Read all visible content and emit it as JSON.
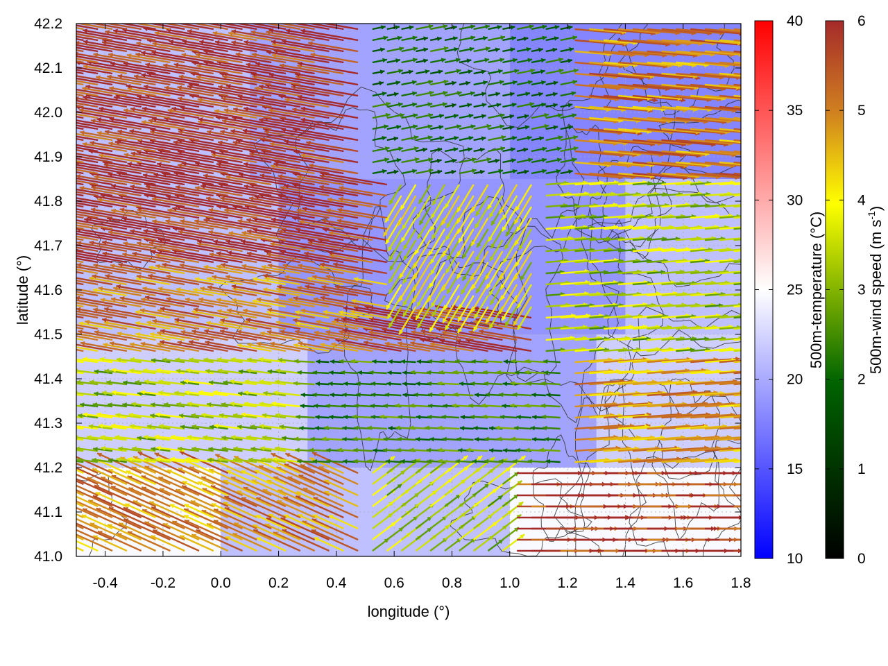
{
  "chart_data": {
    "type": "heatmap",
    "subtype": "vector-field with temperature map and terrain contours",
    "title": "",
    "xlabel": "longitude (°)",
    "ylabel": "latitude (°)",
    "xlim": [
      -0.5,
      1.8
    ],
    "ylim": [
      41.0,
      42.2
    ],
    "xticks": [
      -0.4,
      -0.2,
      0.0,
      0.2,
      0.4,
      0.6,
      0.8,
      1.0,
      1.2,
      1.4,
      1.6,
      1.8
    ],
    "xtick_labels": [
      "-0.4",
      "-0.2",
      "0.0",
      "0.2",
      "0.4",
      "0.6",
      "0.8",
      "1.0",
      "1.2",
      "1.4",
      "1.6",
      "1.8"
    ],
    "yticks": [
      41.0,
      41.1,
      41.2,
      41.3,
      41.4,
      41.5,
      41.6,
      41.7,
      41.8,
      41.9,
      42.0,
      42.1,
      42.2
    ],
    "ytick_labels": [
      "41.0",
      "41.1",
      "41.2",
      "41.3",
      "41.4",
      "41.5",
      "41.6",
      "41.7",
      "41.8",
      "41.9",
      "42.0",
      "42.1",
      "42.2"
    ],
    "grid": true,
    "temperature_colorbar": {
      "label": "500m-temperature (°C)",
      "range": [
        10,
        40
      ],
      "ticks": [
        10,
        15,
        20,
        25,
        30,
        35,
        40
      ],
      "tick_labels": [
        "10",
        "15",
        "20",
        "25",
        "30",
        "35",
        "40"
      ],
      "colors": [
        "#0000ff",
        "#ffffff",
        "#ff0000"
      ]
    },
    "wind_colorbar": {
      "label": "500m-wind speed (m s-1)",
      "label_main": "500m-wind speed (m s",
      "label_sup": "-1",
      "label_end": ")",
      "range": [
        0,
        6
      ],
      "ticks": [
        0,
        1,
        2,
        3,
        4,
        5,
        6
      ],
      "tick_labels": [
        "0",
        "1",
        "2",
        "3",
        "4",
        "5",
        "6"
      ],
      "colors": [
        "#000000",
        "#006400",
        "#ffff00",
        "#d08020",
        "#a52a2a"
      ]
    },
    "temperature_regions": [
      {
        "lon": [
          -0.5,
          0.1
        ],
        "lat": [
          41.85,
          42.2
        ],
        "temp": 21
      },
      {
        "lon": [
          0.1,
          1.0
        ],
        "lat": [
          41.85,
          42.2
        ],
        "temp": 19
      },
      {
        "lon": [
          1.0,
          1.8
        ],
        "lat": [
          41.85,
          42.2
        ],
        "temp": 17
      },
      {
        "lon": [
          -0.5,
          0.2
        ],
        "lat": [
          41.5,
          41.85
        ],
        "temp": 21
      },
      {
        "lon": [
          0.2,
          1.4
        ],
        "lat": [
          41.5,
          41.85
        ],
        "temp": 18
      },
      {
        "lon": [
          1.4,
          1.8
        ],
        "lat": [
          41.5,
          41.85
        ],
        "temp": 21
      },
      {
        "lon": [
          -0.5,
          0.3
        ],
        "lat": [
          41.2,
          41.5
        ],
        "temp": 22
      },
      {
        "lon": [
          0.3,
          1.3
        ],
        "lat": [
          41.2,
          41.5
        ],
        "temp": 19
      },
      {
        "lon": [
          1.3,
          1.8
        ],
        "lat": [
          41.2,
          41.5
        ],
        "temp": 22
      },
      {
        "lon": [
          -0.5,
          0.0
        ],
        "lat": [
          41.0,
          41.2
        ],
        "temp": 25
      },
      {
        "lon": [
          0.0,
          1.0
        ],
        "lat": [
          41.0,
          41.2
        ],
        "temp": 21
      },
      {
        "lon": [
          1.0,
          1.8
        ],
        "lat": [
          41.0,
          41.2
        ],
        "temp": 25
      }
    ],
    "wind_field": {
      "grid_step_lon": 0.05,
      "grid_step_lat": 0.025,
      "speed_scale": 0.045,
      "zones": [
        {
          "lon": [
            -0.5,
            0.5
          ],
          "lat": [
            41.65,
            42.2
          ],
          "u": -5.8,
          "v": 1.0
        },
        {
          "lon": [
            0.5,
            1.2
          ],
          "lat": [
            41.85,
            42.2
          ],
          "u": 1.5,
          "v": 0.3
        },
        {
          "lon": [
            1.2,
            1.8
          ],
          "lat": [
            41.85,
            42.2
          ],
          "u": 4.5,
          "v": -0.4
        },
        {
          "lon": [
            -0.5,
            0.6
          ],
          "lat": [
            41.45,
            41.65
          ],
          "u": -4.5,
          "v": 0.8
        },
        {
          "lon": [
            0.6,
            1.1
          ],
          "lat": [
            41.55,
            41.85
          ],
          "u": -1.5,
          "v": -2.5
        },
        {
          "lon": [
            1.1,
            1.8
          ],
          "lat": [
            41.45,
            41.85
          ],
          "u": 2.5,
          "v": 0.2
        },
        {
          "lon": [
            -0.5,
            0.3
          ],
          "lat": [
            41.2,
            41.45
          ],
          "u": -2.5,
          "v": 0.3
        },
        {
          "lon": [
            0.3,
            1.2
          ],
          "lat": [
            41.2,
            41.45
          ],
          "u": -1.8,
          "v": 0.1
        },
        {
          "lon": [
            1.2,
            1.8
          ],
          "lat": [
            41.2,
            41.45
          ],
          "u": 4.2,
          "v": 0.3
        },
        {
          "lon": [
            -0.5,
            0.5
          ],
          "lat": [
            41.0,
            41.2
          ],
          "u": -4.0,
          "v": 1.8
        },
        {
          "lon": [
            0.5,
            1.0
          ],
          "lat": [
            41.0,
            41.2
          ],
          "u": 2.0,
          "v": 1.5
        },
        {
          "lon": [
            1.0,
            1.8
          ],
          "lat": [
            41.0,
            41.2
          ],
          "u": 5.8,
          "v": 0.0
        }
      ]
    }
  }
}
